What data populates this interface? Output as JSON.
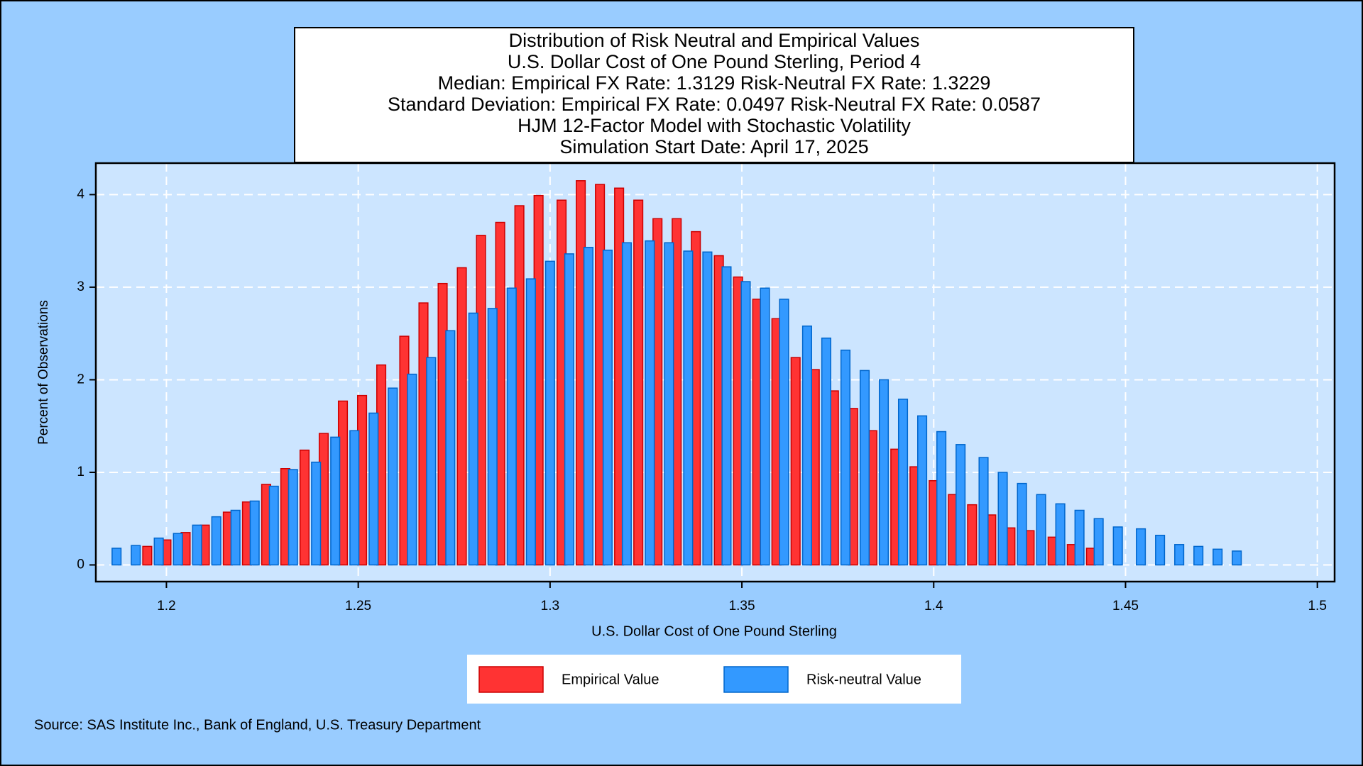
{
  "chart_data": {
    "type": "bar",
    "title": [
      "Distribution of Risk Neutral and Empirical Values",
      "U.S. Dollar Cost of One Pound Sterling, Period 4",
      "Median: Empirical FX Rate:  1.3129   Risk-Neutral FX Rate:  1.3229",
      "Standard Deviation: Empirical FX Rate:  0.0497   Risk-Neutral FX Rate:  0.0587",
      "HJM 12-Factor Model with Stochastic Volatility",
      "Simulation Start Date: April 17, 2025"
    ],
    "x_label": "U.S. Dollar Cost of One Pound Sterling",
    "y_label": "Percent of Observations",
    "source": "Source: SAS Institute Inc., Bank of England, U.S. Treasury Department",
    "xlim": [
      1.1816,
      1.5045
    ],
    "ylim": [
      -0.18,
      4.34
    ],
    "xticks": [
      1.2,
      1.25,
      1.3,
      1.35,
      1.4,
      1.45,
      1.5
    ],
    "yticks": [
      0,
      1,
      2,
      3,
      4
    ],
    "grid": true,
    "legend": "bottom",
    "series": [
      {
        "name": "Empirical Value",
        "color": "#ff3333",
        "x": [
          1.195,
          1.2,
          1.205,
          1.21,
          1.216,
          1.221,
          1.226,
          1.231,
          1.236,
          1.241,
          1.246,
          1.251,
          1.256,
          1.262,
          1.267,
          1.272,
          1.277,
          1.282,
          1.287,
          1.292,
          1.297,
          1.303,
          1.308,
          1.313,
          1.318,
          1.323,
          1.328,
          1.333,
          1.338,
          1.344,
          1.349,
          1.354,
          1.359,
          1.364,
          1.369,
          1.374,
          1.379,
          1.384,
          1.39,
          1.395,
          1.4,
          1.405,
          1.41,
          1.415,
          1.42,
          1.425,
          1.431,
          1.436,
          1.441
        ],
        "values": [
          0.2,
          0.27,
          0.35,
          0.43,
          0.57,
          0.68,
          0.87,
          1.04,
          1.24,
          1.42,
          1.77,
          1.83,
          2.16,
          2.47,
          2.83,
          3.04,
          3.21,
          3.56,
          3.7,
          3.88,
          3.99,
          3.94,
          4.15,
          4.11,
          4.07,
          3.94,
          3.74,
          3.74,
          3.6,
          3.34,
          3.11,
          2.87,
          2.66,
          2.24,
          2.11,
          1.88,
          1.69,
          1.45,
          1.25,
          1.06,
          0.91,
          0.76,
          0.65,
          0.54,
          0.4,
          0.37,
          0.3,
          0.22,
          0.18
        ]
      },
      {
        "name": "Risk-neutral Value",
        "color": "#3399ff",
        "x": [
          1.187,
          1.192,
          1.198,
          1.203,
          1.208,
          1.213,
          1.218,
          1.223,
          1.228,
          1.233,
          1.239,
          1.244,
          1.249,
          1.254,
          1.259,
          1.264,
          1.269,
          1.274,
          1.28,
          1.285,
          1.29,
          1.295,
          1.3,
          1.305,
          1.31,
          1.315,
          1.32,
          1.326,
          1.331,
          1.336,
          1.341,
          1.346,
          1.351,
          1.356,
          1.361,
          1.367,
          1.372,
          1.377,
          1.382,
          1.387,
          1.392,
          1.397,
          1.402,
          1.407,
          1.413,
          1.418,
          1.423,
          1.428,
          1.433,
          1.438,
          1.443,
          1.448,
          1.454,
          1.459,
          1.464,
          1.469,
          1.474,
          1.479
        ],
        "values": [
          0.18,
          0.21,
          0.29,
          0.34,
          0.43,
          0.52,
          0.59,
          0.69,
          0.85,
          1.03,
          1.11,
          1.38,
          1.45,
          1.64,
          1.91,
          2.06,
          2.24,
          2.53,
          2.72,
          2.77,
          2.99,
          3.09,
          3.28,
          3.36,
          3.43,
          3.4,
          3.48,
          3.5,
          3.48,
          3.39,
          3.38,
          3.22,
          3.06,
          2.99,
          2.87,
          2.58,
          2.45,
          2.32,
          2.1,
          2.0,
          1.79,
          1.61,
          1.44,
          1.3,
          1.16,
          1.0,
          0.88,
          0.76,
          0.66,
          0.59,
          0.5,
          0.41,
          0.39,
          0.32,
          0.22,
          0.2,
          0.17,
          0.15
        ]
      }
    ]
  }
}
